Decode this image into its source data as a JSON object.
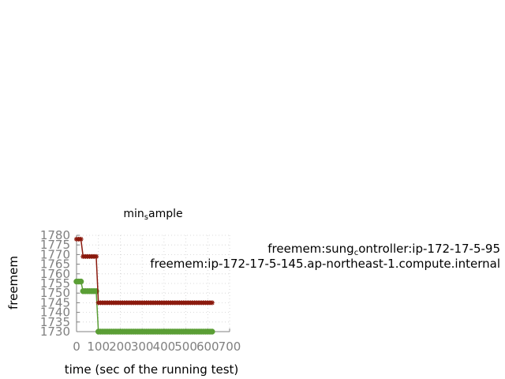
{
  "chart_data": {
    "type": "line",
    "title": "min_sample",
    "xlabel": "time (sec of the running test)",
    "ylabel": "freemem",
    "xlim": [
      0,
      700
    ],
    "ylim": [
      1730,
      1780
    ],
    "xticks": [
      0,
      100,
      200,
      300,
      400,
      500,
      600,
      700
    ],
    "yticks": [
      1730,
      1735,
      1740,
      1745,
      1750,
      1755,
      1760,
      1765,
      1770,
      1775,
      1780
    ],
    "grid": true,
    "legend_position": "right",
    "series": [
      {
        "name": "freemem:sung_controller:ip-172-17-5-95",
        "color": "#8b1a0e",
        "marker": "star",
        "x": [
          0,
          10,
          20,
          30,
          40,
          50,
          60,
          70,
          80,
          90,
          100,
          110,
          120,
          130,
          140,
          150,
          160,
          170,
          180,
          190,
          200,
          210,
          220,
          230,
          240,
          250,
          260,
          270,
          280,
          290,
          300,
          310,
          320,
          330,
          340,
          350,
          360,
          370,
          380,
          390,
          400,
          410,
          420,
          430,
          440,
          450,
          460,
          470,
          480,
          490,
          500,
          510,
          520,
          530,
          540,
          550,
          560,
          570,
          580,
          590,
          600,
          610,
          620
        ],
        "y": [
          1778,
          1778,
          1778,
          1769,
          1769,
          1769,
          1769,
          1769,
          1769,
          1769,
          1745,
          1745,
          1745,
          1745,
          1745,
          1745,
          1745,
          1745,
          1745,
          1745,
          1745,
          1745,
          1745,
          1745,
          1745,
          1745,
          1745,
          1745,
          1745,
          1745,
          1745,
          1745,
          1745,
          1745,
          1745,
          1745,
          1745,
          1745,
          1745,
          1745,
          1745,
          1745,
          1745,
          1745,
          1745,
          1745,
          1745,
          1745,
          1745,
          1745,
          1745,
          1745,
          1745,
          1745,
          1745,
          1745,
          1745,
          1745,
          1745,
          1745,
          1745,
          1745,
          1745
        ]
      },
      {
        "name": "freemem:ip-172-17-5-145.ap-northeast-1.compute.internal",
        "color": "#5a9e35",
        "marker": "circle",
        "x": [
          0,
          10,
          20,
          30,
          40,
          50,
          60,
          70,
          80,
          90,
          100,
          110,
          120,
          130,
          140,
          150,
          160,
          170,
          180,
          190,
          200,
          210,
          220,
          230,
          240,
          250,
          260,
          270,
          280,
          290,
          300,
          310,
          320,
          330,
          340,
          350,
          360,
          370,
          380,
          390,
          400,
          410,
          420,
          430,
          440,
          450,
          460,
          470,
          480,
          490,
          500,
          510,
          520,
          530,
          540,
          550,
          560,
          570,
          580,
          590,
          600,
          610,
          620
        ],
        "y": [
          1756,
          1756,
          1756,
          1751,
          1751,
          1751,
          1751,
          1751,
          1751,
          1751,
          1730,
          1730,
          1730,
          1730,
          1730,
          1730,
          1730,
          1730,
          1730,
          1730,
          1730,
          1730,
          1730,
          1730,
          1730,
          1730,
          1730,
          1730,
          1730,
          1730,
          1730,
          1730,
          1730,
          1730,
          1730,
          1730,
          1730,
          1730,
          1730,
          1730,
          1730,
          1730,
          1730,
          1730,
          1730,
          1730,
          1730,
          1730,
          1730,
          1730,
          1730,
          1730,
          1730,
          1730,
          1730,
          1730,
          1730,
          1730,
          1730,
          1730,
          1730,
          1730,
          1730
        ]
      }
    ]
  }
}
